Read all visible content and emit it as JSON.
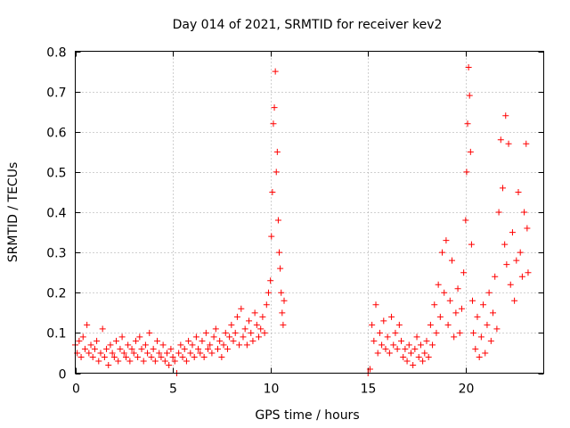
{
  "chart_data": {
    "type": "scatter",
    "title": "Day 014 of 2021, SRMTID for receiver kev2",
    "xlabel": "GPS time / hours",
    "ylabel": "SRMTID / TECUs",
    "xlim": [
      0,
      24
    ],
    "ylim": [
      0,
      0.8
    ],
    "xticks": [
      0,
      5,
      10,
      15,
      20
    ],
    "yticks": [
      0,
      0.1,
      0.2,
      0.3,
      0.4,
      0.5,
      0.6,
      0.7,
      0.8
    ],
    "xtick_labels": [
      "0",
      "5",
      "10",
      "15",
      "20"
    ],
    "ytick_labels": [
      "0",
      "0.1",
      "0.2",
      "0.3",
      "0.4",
      "0.5",
      "0.6",
      "0.7",
      "0.8"
    ],
    "grid": true,
    "marker": "+",
    "color": "#ff0000",
    "series": [
      {
        "name": "kev2",
        "points": [
          [
            0.0,
            0.07
          ],
          [
            0.1,
            0.05
          ],
          [
            0.2,
            0.08
          ],
          [
            0.3,
            0.04
          ],
          [
            0.4,
            0.09
          ],
          [
            0.5,
            0.06
          ],
          [
            0.6,
            0.12
          ],
          [
            0.7,
            0.05
          ],
          [
            0.8,
            0.07
          ],
          [
            0.9,
            0.04
          ],
          [
            1.0,
            0.06
          ],
          [
            1.1,
            0.08
          ],
          [
            1.2,
            0.03
          ],
          [
            1.3,
            0.05
          ],
          [
            1.4,
            0.11
          ],
          [
            1.5,
            0.04
          ],
          [
            1.6,
            0.06
          ],
          [
            1.7,
            0.02
          ],
          [
            1.8,
            0.07
          ],
          [
            1.9,
            0.05
          ],
          [
            2.0,
            0.04
          ],
          [
            2.1,
            0.08
          ],
          [
            2.2,
            0.03
          ],
          [
            2.3,
            0.06
          ],
          [
            2.4,
            0.09
          ],
          [
            2.5,
            0.05
          ],
          [
            2.6,
            0.04
          ],
          [
            2.7,
            0.07
          ],
          [
            2.8,
            0.03
          ],
          [
            2.9,
            0.06
          ],
          [
            3.0,
            0.05
          ],
          [
            3.1,
            0.08
          ],
          [
            3.2,
            0.04
          ],
          [
            3.3,
            0.09
          ],
          [
            3.4,
            0.06
          ],
          [
            3.5,
            0.03
          ],
          [
            3.6,
            0.07
          ],
          [
            3.7,
            0.05
          ],
          [
            3.8,
            0.1
          ],
          [
            3.9,
            0.04
          ],
          [
            4.0,
            0.06
          ],
          [
            4.1,
            0.03
          ],
          [
            4.2,
            0.08
          ],
          [
            4.3,
            0.05
          ],
          [
            4.4,
            0.04
          ],
          [
            4.5,
            0.07
          ],
          [
            4.6,
            0.03
          ],
          [
            4.7,
            0.05
          ],
          [
            4.8,
            0.02
          ],
          [
            4.9,
            0.06
          ],
          [
            5.0,
            0.04
          ],
          [
            5.1,
            0.03
          ],
          [
            5.2,
            0.0
          ],
          [
            5.3,
            0.05
          ],
          [
            5.4,
            0.07
          ],
          [
            5.5,
            0.04
          ],
          [
            5.6,
            0.06
          ],
          [
            5.7,
            0.03
          ],
          [
            5.8,
            0.08
          ],
          [
            5.9,
            0.05
          ],
          [
            6.0,
            0.07
          ],
          [
            6.1,
            0.04
          ],
          [
            6.2,
            0.09
          ],
          [
            6.3,
            0.06
          ],
          [
            6.4,
            0.05
          ],
          [
            6.5,
            0.08
          ],
          [
            6.6,
            0.04
          ],
          [
            6.7,
            0.1
          ],
          [
            6.8,
            0.06
          ],
          [
            6.9,
            0.07
          ],
          [
            7.0,
            0.05
          ],
          [
            7.1,
            0.09
          ],
          [
            7.2,
            0.11
          ],
          [
            7.3,
            0.06
          ],
          [
            7.4,
            0.08
          ],
          [
            7.5,
            0.04
          ],
          [
            7.6,
            0.07
          ],
          [
            7.7,
            0.1
          ],
          [
            7.8,
            0.06
          ],
          [
            7.9,
            0.09
          ],
          [
            8.0,
            0.12
          ],
          [
            8.1,
            0.08
          ],
          [
            8.2,
            0.1
          ],
          [
            8.3,
            0.14
          ],
          [
            8.4,
            0.07
          ],
          [
            8.5,
            0.16
          ],
          [
            8.6,
            0.09
          ],
          [
            8.7,
            0.11
          ],
          [
            8.8,
            0.07
          ],
          [
            8.9,
            0.13
          ],
          [
            9.0,
            0.1
          ],
          [
            9.1,
            0.08
          ],
          [
            9.2,
            0.15
          ],
          [
            9.3,
            0.12
          ],
          [
            9.4,
            0.09
          ],
          [
            9.5,
            0.11
          ],
          [
            9.6,
            0.14
          ],
          [
            9.7,
            0.1
          ],
          [
            9.8,
            0.17
          ],
          [
            9.9,
            0.2
          ],
          [
            10.0,
            0.23
          ],
          [
            10.05,
            0.34
          ],
          [
            10.1,
            0.45
          ],
          [
            10.15,
            0.62
          ],
          [
            10.2,
            0.66
          ],
          [
            10.25,
            0.75
          ],
          [
            10.3,
            0.5
          ],
          [
            10.35,
            0.55
          ],
          [
            10.4,
            0.38
          ],
          [
            10.45,
            0.3
          ],
          [
            10.5,
            0.26
          ],
          [
            10.55,
            0.2
          ],
          [
            10.6,
            0.15
          ],
          [
            10.65,
            0.12
          ],
          [
            10.7,
            0.18
          ],
          [
            15.0,
            0.0
          ],
          [
            15.1,
            0.01
          ],
          [
            15.2,
            0.12
          ],
          [
            15.3,
            0.08
          ],
          [
            15.4,
            0.17
          ],
          [
            15.5,
            0.05
          ],
          [
            15.6,
            0.1
          ],
          [
            15.7,
            0.07
          ],
          [
            15.8,
            0.13
          ],
          [
            15.9,
            0.06
          ],
          [
            16.0,
            0.09
          ],
          [
            16.1,
            0.05
          ],
          [
            16.2,
            0.14
          ],
          [
            16.3,
            0.07
          ],
          [
            16.4,
            0.1
          ],
          [
            16.5,
            0.06
          ],
          [
            16.6,
            0.12
          ],
          [
            16.7,
            0.08
          ],
          [
            16.8,
            0.04
          ],
          [
            16.9,
            0.06
          ],
          [
            17.0,
            0.03
          ],
          [
            17.1,
            0.07
          ],
          [
            17.2,
            0.05
          ],
          [
            17.3,
            0.02
          ],
          [
            17.4,
            0.06
          ],
          [
            17.5,
            0.09
          ],
          [
            17.6,
            0.04
          ],
          [
            17.7,
            0.07
          ],
          [
            17.8,
            0.03
          ],
          [
            17.9,
            0.05
          ],
          [
            18.0,
            0.08
          ],
          [
            18.1,
            0.04
          ],
          [
            18.2,
            0.12
          ],
          [
            18.3,
            0.07
          ],
          [
            18.4,
            0.17
          ],
          [
            18.5,
            0.1
          ],
          [
            18.6,
            0.22
          ],
          [
            18.7,
            0.14
          ],
          [
            18.8,
            0.3
          ],
          [
            18.9,
            0.2
          ],
          [
            19.0,
            0.33
          ],
          [
            19.1,
            0.12
          ],
          [
            19.2,
            0.18
          ],
          [
            19.3,
            0.28
          ],
          [
            19.4,
            0.09
          ],
          [
            19.5,
            0.15
          ],
          [
            19.6,
            0.21
          ],
          [
            19.7,
            0.1
          ],
          [
            19.8,
            0.16
          ],
          [
            19.9,
            0.25
          ],
          [
            20.0,
            0.38
          ],
          [
            20.05,
            0.5
          ],
          [
            20.1,
            0.62
          ],
          [
            20.15,
            0.76
          ],
          [
            20.2,
            0.69
          ],
          [
            20.25,
            0.55
          ],
          [
            20.3,
            0.32
          ],
          [
            20.35,
            0.18
          ],
          [
            20.4,
            0.1
          ],
          [
            20.5,
            0.06
          ],
          [
            20.6,
            0.14
          ],
          [
            20.7,
            0.04
          ],
          [
            20.8,
            0.09
          ],
          [
            20.9,
            0.17
          ],
          [
            21.0,
            0.05
          ],
          [
            21.1,
            0.12
          ],
          [
            21.2,
            0.2
          ],
          [
            21.3,
            0.08
          ],
          [
            21.4,
            0.15
          ],
          [
            21.5,
            0.24
          ],
          [
            21.6,
            0.11
          ],
          [
            21.7,
            0.4
          ],
          [
            21.8,
            0.58
          ],
          [
            21.9,
            0.46
          ],
          [
            22.0,
            0.32
          ],
          [
            22.05,
            0.64
          ],
          [
            22.1,
            0.27
          ],
          [
            22.2,
            0.57
          ],
          [
            22.3,
            0.22
          ],
          [
            22.4,
            0.35
          ],
          [
            22.5,
            0.18
          ],
          [
            22.6,
            0.28
          ],
          [
            22.7,
            0.45
          ],
          [
            22.8,
            0.3
          ],
          [
            22.9,
            0.24
          ],
          [
            23.0,
            0.4
          ],
          [
            23.1,
            0.57
          ],
          [
            23.15,
            0.36
          ],
          [
            23.2,
            0.25
          ]
        ]
      }
    ]
  }
}
